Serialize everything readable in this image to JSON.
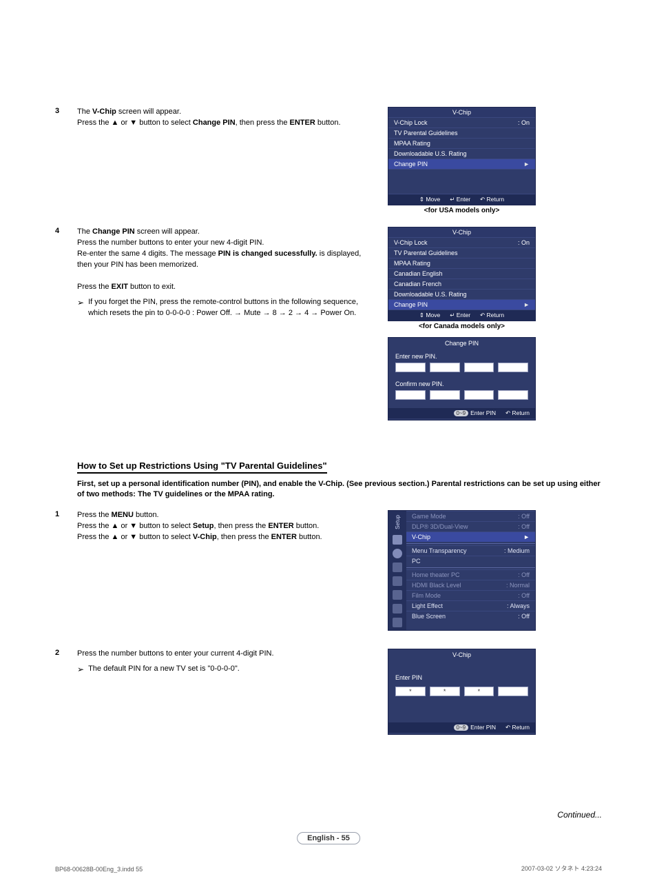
{
  "steps_top": [
    {
      "num": "3",
      "lines": [
        "The <b>V-Chip</b> screen will appear.",
        "Press the ▲ or ▼ button to select <b>Change PIN</b>, then press the <b>ENTER</b> button."
      ]
    },
    {
      "num": "4",
      "lines": [
        "The <b>Change PIN</b> screen will appear.",
        "Press the number buttons to enter your new 4-digit PIN.",
        "Re-enter the same 4 digits. The message <b>PIN is changed sucessfully.</b> is displayed, then your PIN has been memorized."
      ],
      "after": "Press the <b>EXIT</b> button to exit.",
      "note": "If you forget the PIN, press the remote-control buttons in the following sequence, which resets the pin to 0-0-0-0 : Power Off. → Mute → 8 → 2 → 4 → Power On."
    }
  ],
  "osd_usa": {
    "title": "V-Chip",
    "rows": [
      {
        "l": "V-Chip Lock",
        "r": ": On"
      },
      {
        "l": "TV Parental Guidelines",
        "r": ""
      },
      {
        "l": "MPAA Rating",
        "r": ""
      },
      {
        "l": "Downloadable U.S. Rating",
        "r": ""
      },
      {
        "l": "Change PIN",
        "r": "►",
        "sel": true
      }
    ],
    "foot": [
      "Move",
      "Enter",
      "Return"
    ],
    "cap": "<for USA models only>"
  },
  "osd_can": {
    "title": "V-Chip",
    "rows": [
      {
        "l": "V-Chip Lock",
        "r": ": On"
      },
      {
        "l": "TV Parental Guidelines",
        "r": ""
      },
      {
        "l": "MPAA Rating",
        "r": ""
      },
      {
        "l": "Canadian English",
        "r": ""
      },
      {
        "l": "Canadian French",
        "r": ""
      },
      {
        "l": "Downloadable U.S. Rating",
        "r": ""
      },
      {
        "l": "Change PIN",
        "r": "►",
        "sel": true
      }
    ],
    "foot": [
      "Move",
      "Enter",
      "Return"
    ],
    "cap": "<for Canada models only>"
  },
  "change_pin_panel": {
    "title": "Change PIN",
    "enter_label": "Enter new PIN.",
    "confirm_label": "Confirm new PIN.",
    "foot_pill": "0~9",
    "foot": [
      "Enter PIN",
      "Return"
    ]
  },
  "section_heading": "How to Set up Restrictions Using \"TV Parental Guidelines\"",
  "intro": "First, set up a personal identification number (PIN), and enable the V-Chip. (See previous section.) Parental restrictions can be set up using either of two methods: The TV guidelines or the MPAA rating.",
  "steps_bottom": [
    {
      "num": "1",
      "lines": [
        "Press the <b>MENU</b> button.",
        "Press the ▲ or ▼ button to select <b>Setup</b>, then press the <b>ENTER</b> button.",
        "Press the ▲ or ▼ button to select <b>V-Chip</b>, then press the <b>ENTER</b> button."
      ]
    },
    {
      "num": "2",
      "lines": [
        "Press the number buttons to enter your current 4-digit PIN."
      ],
      "note": "The default PIN for a new TV set is \"0-0-0-0\"."
    }
  ],
  "setup_menu": {
    "side_label": "Setup",
    "rows": [
      {
        "l": "Game Mode",
        "r": ": Off",
        "dim": true
      },
      {
        "l": "DLP® 3D/Dual-View",
        "r": ": Off",
        "dim": true
      },
      {
        "l": "V-Chip",
        "r": "►",
        "sel": true
      },
      {
        "l": "Menu Transparency",
        "r": ": Medium"
      },
      {
        "l": "PC",
        "r": ""
      },
      {
        "l": "Home theater PC",
        "r": ": Off",
        "dim": true
      },
      {
        "l": "HDMI Black Level",
        "r": ": Normal",
        "dim": true
      },
      {
        "l": "Film Mode",
        "r": ": Off",
        "dim": true
      },
      {
        "l": "Light Effect",
        "r": ": Always"
      },
      {
        "l": "Blue Screen",
        "r": ": Off"
      }
    ]
  },
  "enter_pin_panel": {
    "title": "V-Chip",
    "label": "Enter PIN",
    "values": [
      "*",
      "*",
      "*",
      ""
    ],
    "foot_pill": "0~9",
    "foot": [
      "Enter PIN",
      "Return"
    ]
  },
  "continued": "Continued...",
  "pagelabel": "English - 55",
  "foot_l": "BP68-00628B-00Eng_3.indd   55",
  "foot_r": "2007-03-02   ソタネト 4:23:24",
  "glyphs": {
    "updown": "⇕",
    "enter": "↵",
    "ret": "↶"
  },
  "colors": {
    "osd_bg": "#2f3b6a",
    "osd_sel": "#3a4aa0",
    "osd_foot": "#1f2a55"
  }
}
